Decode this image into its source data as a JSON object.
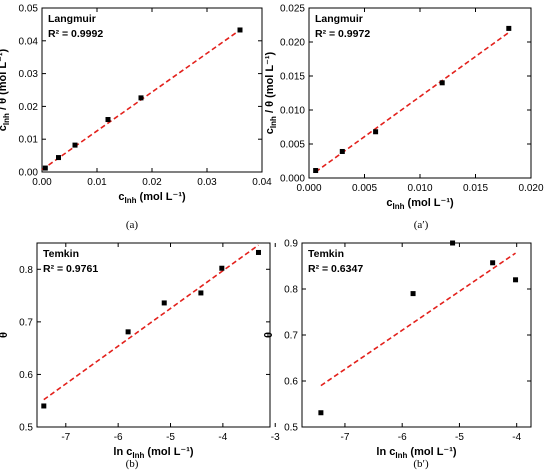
{
  "chart_data": [
    {
      "type": "scatter",
      "caption": "(a)",
      "title": "Langmuir",
      "annotation": "R² = 0.9992",
      "xlabel": {
        "main": "c",
        "sub": "Inh",
        "rest": " (mol L⁻¹)"
      },
      "ylabel": {
        "main": "c",
        "sub": "Inh",
        "rest": " / θ (mol L⁻¹)"
      },
      "xlim": [
        0,
        0.04
      ],
      "ylim": [
        0,
        0.05
      ],
      "xticks": [
        "0.00",
        "0.01",
        "0.02",
        "0.03",
        "0.04"
      ],
      "xtick_values": [
        0,
        0.01,
        0.02,
        0.03,
        0.04
      ],
      "yticks": [
        "0.00",
        "0.01",
        "0.02",
        "0.03",
        "0.04",
        "0.05"
      ],
      "ytick_values": [
        0,
        0.01,
        0.02,
        0.03,
        0.04,
        0.05
      ],
      "x": [
        0.0006,
        0.003,
        0.006,
        0.012,
        0.018,
        0.036
      ],
      "y": [
        0.0012,
        0.0044,
        0.0082,
        0.016,
        0.0226,
        0.0433
      ],
      "fit": {
        "x": [
          0,
          0.036
        ],
        "y": [
          0.0007,
          0.0433
        ]
      },
      "marker_color": "#000000",
      "fit_color": "#e3211c"
    },
    {
      "type": "scatter",
      "caption": "(a′)",
      "title": "Langmuir",
      "annotation": "R² = 0.9972",
      "xlabel": {
        "main": "c",
        "sub": "Inh",
        "rest": " (mol L⁻¹)"
      },
      "ylabel": {
        "main": "c",
        "sub": "Inh",
        "rest": " / θ (mol L⁻¹)"
      },
      "xlim": [
        0,
        0.02
      ],
      "ylim": [
        0,
        0.025
      ],
      "xticks": [
        "0.000",
        "0.005",
        "0.010",
        "0.015",
        "0.020"
      ],
      "xtick_values": [
        0,
        0.005,
        0.01,
        0.015,
        0.02
      ],
      "yticks": [
        "0.000",
        "0.005",
        "0.010",
        "0.015",
        "0.020",
        "0.025"
      ],
      "ytick_values": [
        0,
        0.005,
        0.01,
        0.015,
        0.02,
        0.025
      ],
      "x": [
        0.0006,
        0.003,
        0.006,
        0.012,
        0.018
      ],
      "y": [
        0.0011,
        0.0039,
        0.0068,
        0.014,
        0.022
      ],
      "fit": {
        "x": [
          0.0006,
          0.018
        ],
        "y": [
          0.0009,
          0.0214
        ]
      },
      "marker_color": "#000000",
      "fit_color": "#e3211c"
    },
    {
      "type": "scatter",
      "caption": "(b)",
      "title": "Temkin",
      "annotation": "R² = 0.9761",
      "xlabel": {
        "main": "ln c",
        "sub": "Inh",
        "rest": " (mol L⁻¹)"
      },
      "ylabel": {
        "main": "θ",
        "sub": "",
        "rest": ""
      },
      "xlim": [
        -7.55,
        -3.1
      ],
      "ylim": [
        0.5,
        0.85
      ],
      "xticks": [
        "-7",
        "-6",
        "-5",
        "-4",
        "-3"
      ],
      "xtick_values": [
        -7,
        -6,
        -5,
        -4,
        -3
      ],
      "yticks": [
        "0.5",
        "0.6",
        "0.7",
        "0.8"
      ],
      "ytick_values": [
        0.5,
        0.6,
        0.7,
        0.8
      ],
      "x": [
        -7.42,
        -5.81,
        -5.12,
        -4.42,
        -4.02,
        -3.32
      ],
      "y": [
        0.54,
        0.681,
        0.736,
        0.755,
        0.802,
        0.832
      ],
      "fit": {
        "x": [
          -7.42,
          -3.32
        ],
        "y": [
          0.552,
          0.846
        ]
      },
      "marker_color": "#000000",
      "fit_color": "#e3211c"
    },
    {
      "type": "scatter",
      "caption": "(b′)",
      "title": "Temkin",
      "annotation": "R² = 0.6347",
      "xlabel": {
        "main": "ln c",
        "sub": "Inh",
        "rest": " (mol L⁻¹)"
      },
      "ylabel": {
        "main": "θ",
        "sub": "",
        "rest": ""
      },
      "xlim": [
        -7.75,
        -3.75
      ],
      "ylim": [
        0.5,
        0.9
      ],
      "xticks": [
        "-7",
        "-6",
        "-5",
        "-4"
      ],
      "xtick_values": [
        -7,
        -6,
        -5,
        -4
      ],
      "yticks": [
        "0.5",
        "0.6",
        "0.7",
        "0.8",
        "0.9"
      ],
      "ytick_values": [
        0.5,
        0.6,
        0.7,
        0.8,
        0.9
      ],
      "x": [
        -7.42,
        -5.81,
        -5.12,
        -4.42,
        -4.02
      ],
      "y": [
        0.531,
        0.79,
        0.9,
        0.857,
        0.82
      ],
      "fit": {
        "x": [
          -7.42,
          -4.02
        ],
        "y": [
          0.59,
          0.878
        ]
      },
      "marker_color": "#000000",
      "fit_color": "#e3211c"
    }
  ]
}
